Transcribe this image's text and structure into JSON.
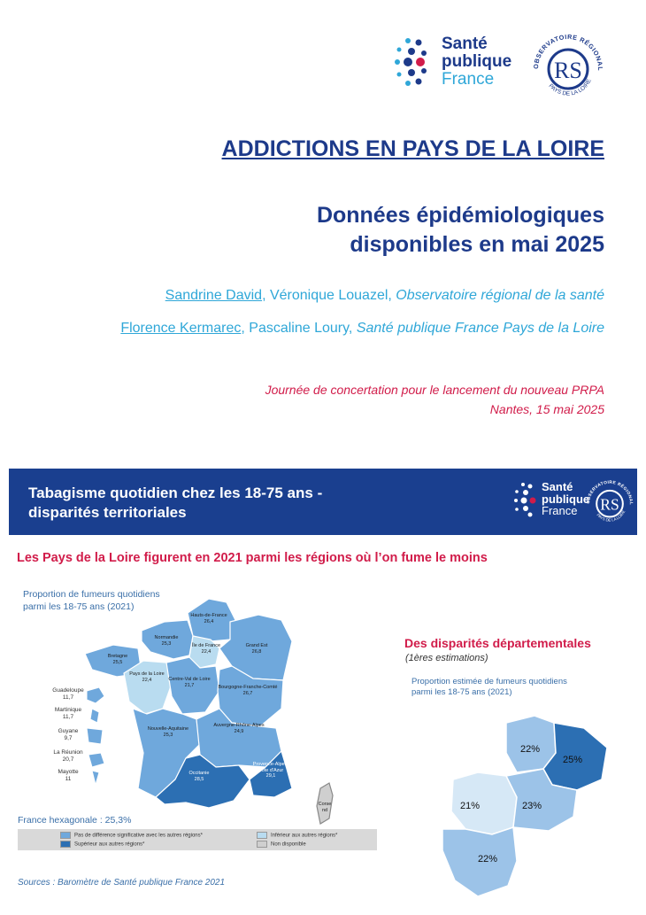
{
  "logos": {
    "spf_line1": "Santé",
    "spf_line2": "publique",
    "spf_line3": "France",
    "ors_ring_top": "OBSERVATOIRE RÉGIONAL DE LA SANTÉ",
    "ors_ring_bottom": "PAYS DE LA LOIRE",
    "ors_mark": "RS"
  },
  "cover": {
    "title": "ADDICTIONS EN PAYS DE LA LOIRE",
    "subtitle_line1": "Données épidémiologiques",
    "subtitle_line2": "disponibles en mai 2025",
    "author1_name": "Sandrine David",
    "author1_rest": ", Véronique Louazel, ",
    "author1_org": "Observatoire régional de la santé",
    "author2_name": "Florence Kermarec",
    "author2_rest": ", Pascaline Loury, ",
    "author2_org": "Santé publique France Pays de la Loire",
    "event_line1": "Journée de concertation pour le lancement du nouveau PRPA",
    "event_line2": "Nantes, 15 mai 2025"
  },
  "slide": {
    "header_line1": "Tabagisme quotidien chez les 18-75 ans -",
    "header_line2": "disparités territoriales",
    "headline": "Les Pays de la Loire figurent en 2021 parmi les régions où l’on fume le moins",
    "map_caption_line1": "Proportion de fumeurs quotidiens",
    "map_caption_line2": "parmi les 18-75 ans (2021)",
    "france_total": "France hexagonale : 25,3%",
    "legend": [
      {
        "label": "Pas de différence significative avec les autres régions*",
        "color": "#6fa8dc"
      },
      {
        "label": "Inférieur aux autres régions*",
        "color": "#b9dcf0"
      },
      {
        "label": "Supérieur aux autres régions*",
        "color": "#2c6fb3"
      },
      {
        "label": "Non disponible",
        "color": "#cfcfcf"
      }
    ],
    "source": "Sources : Baromètre de Santé publique France 2021",
    "dept_title": "Des disparités départementales",
    "dept_subtitle": "(1ères estimations)",
    "dept_caption_line1": "Proportion estimée de fumeurs quotidiens",
    "dept_caption_line2": "parmi les 18-75 ans (2021)"
  },
  "regions": [
    {
      "name": "Hauts-de-France",
      "value": "26,4"
    },
    {
      "name": "Normandie",
      "value": "25,3"
    },
    {
      "name": "Île de France",
      "value": "22,4"
    },
    {
      "name": "Grand Est",
      "value": "26,8"
    },
    {
      "name": "Bretagne",
      "value": "25,5"
    },
    {
      "name": "Pays de la Loire",
      "value": "22,4"
    },
    {
      "name": "Centre-Val de Loire",
      "value": "21,7"
    },
    {
      "name": "Bourgogne-Franche-Comté",
      "value": "26,7"
    },
    {
      "name": "Nouvelle-Aquitaine",
      "value": "25,3"
    },
    {
      "name": "Auvergne-Rhône-Alpes",
      "value": "24,9"
    },
    {
      "name": "Occitanie",
      "value": "28,5"
    },
    {
      "name": "Provence-Alpes-Côte d'Azur",
      "value": "29,1"
    },
    {
      "name": "Corse",
      "value": "nd"
    }
  ],
  "overseas": [
    {
      "name": "Guadeloupe",
      "value": "11,7"
    },
    {
      "name": "Martinique",
      "value": "11,7"
    },
    {
      "name": "Guyane",
      "value": "9,7"
    },
    {
      "name": "La Réunion",
      "value": "20,7"
    },
    {
      "name": "Mayotte",
      "value": "11"
    }
  ],
  "departments": [
    {
      "value": "22%",
      "color": "#9cc3e8"
    },
    {
      "value": "25%",
      "color": "#2c6fb3"
    },
    {
      "value": "21%",
      "color": "#d6e8f6"
    },
    {
      "value": "23%",
      "color": "#9cc3e8"
    },
    {
      "value": "22%",
      "color": "#9cc3e8"
    }
  ]
}
